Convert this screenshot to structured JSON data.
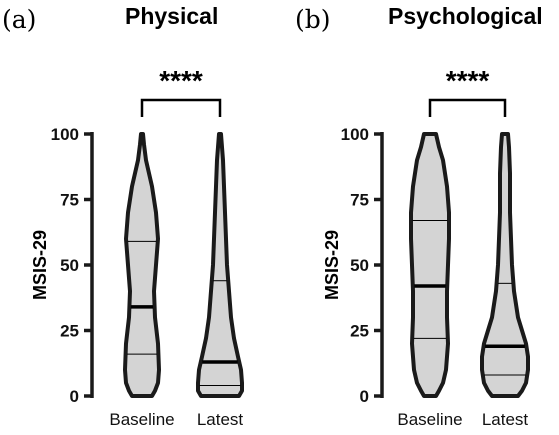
{
  "chart_data": [
    {
      "type": "violin",
      "panel_letter": "(a)",
      "title": "Physical",
      "ylabel": "MSIS-29",
      "ylim": [
        0,
        100
      ],
      "yticks": [
        0,
        25,
        50,
        75,
        100
      ],
      "significance": "****",
      "categories": [
        "Baseline",
        "Latest"
      ],
      "series": [
        {
          "category": "Baseline",
          "median": 34,
          "q1": 16,
          "q3": 59,
          "min": 0,
          "max": 100,
          "profile": [
            [
              100,
              1
            ],
            [
              96,
              2
            ],
            [
              90,
              4
            ],
            [
              85,
              7
            ],
            [
              80,
              10
            ],
            [
              70,
              14
            ],
            [
              60,
              16
            ],
            [
              50,
              14
            ],
            [
              40,
              12
            ],
            [
              30,
              13
            ],
            [
              20,
              16
            ],
            [
              10,
              17
            ],
            [
              5,
              16
            ],
            [
              2,
              13
            ],
            [
              0,
              10
            ]
          ]
        },
        {
          "category": "Latest",
          "median": 13,
          "q1": 4,
          "q3": 44,
          "min": 0,
          "max": 100,
          "profile": [
            [
              100,
              1
            ],
            [
              95,
              2
            ],
            [
              90,
              3
            ],
            [
              80,
              4
            ],
            [
              70,
              5
            ],
            [
              60,
              6
            ],
            [
              50,
              7
            ],
            [
              40,
              9
            ],
            [
              30,
              11
            ],
            [
              22,
              14
            ],
            [
              15,
              18
            ],
            [
              10,
              21
            ],
            [
              5,
              22
            ],
            [
              2,
              22
            ],
            [
              0,
              19
            ]
          ]
        }
      ]
    },
    {
      "type": "violin",
      "panel_letter": "(b)",
      "title": "Psychological",
      "ylabel": "MSIS-29",
      "ylim": [
        0,
        100
      ],
      "yticks": [
        0,
        25,
        50,
        75,
        100
      ],
      "significance": "****",
      "categories": [
        "Baseline",
        "Latest"
      ],
      "series": [
        {
          "category": "Baseline",
          "median": 42,
          "q1": 22,
          "q3": 67,
          "min": 0,
          "max": 100,
          "profile": [
            [
              100,
              6
            ],
            [
              95,
              9
            ],
            [
              90,
              13
            ],
            [
              80,
              17
            ],
            [
              70,
              19
            ],
            [
              60,
              19
            ],
            [
              50,
              18
            ],
            [
              40,
              17
            ],
            [
              30,
              17
            ],
            [
              20,
              18
            ],
            [
              10,
              16
            ],
            [
              5,
              13
            ],
            [
              2,
              9
            ],
            [
              0,
              6
            ]
          ]
        },
        {
          "category": "Latest",
          "median": 19,
          "q1": 8,
          "q3": 43,
          "min": 0,
          "max": 100,
          "profile": [
            [
              100,
              3
            ],
            [
              95,
              4
            ],
            [
              85,
              5
            ],
            [
              70,
              5
            ],
            [
              60,
              6
            ],
            [
              50,
              7
            ],
            [
              40,
              9
            ],
            [
              30,
              13
            ],
            [
              25,
              17
            ],
            [
              20,
              21
            ],
            [
              15,
              23
            ],
            [
              10,
              23
            ],
            [
              5,
              21
            ],
            [
              2,
              17
            ],
            [
              0,
              13
            ]
          ]
        }
      ]
    }
  ]
}
